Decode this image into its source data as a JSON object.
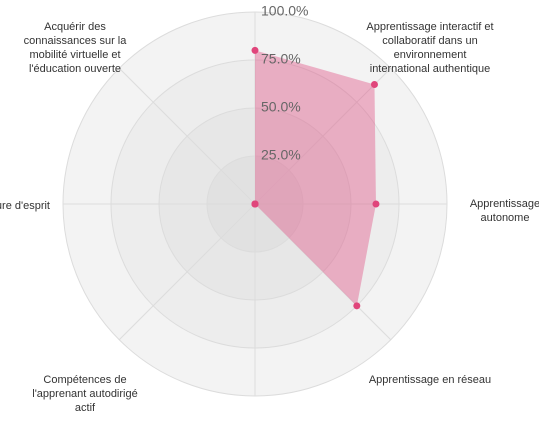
{
  "chart_data": {
    "type": "radar",
    "categories": [
      null,
      "Apprentissage interactif et collaboratif dans un environnement international authentique",
      "Apprentissage autonome",
      "Apprentissage en réseau",
      null,
      "Compétences de l'apprenant autodirigé actif",
      "ure d'esprit",
      "Acquérir des connaissances sur la mobilité virtuelle et l'éducation ouverte"
    ],
    "series": [
      {
        "color": "#e0457b",
        "values": [
          80,
          88,
          63,
          75,
          0,
          0,
          0,
          0
        ]
      }
    ],
    "ylim": [
      0,
      100
    ],
    "yticks": [
      {
        "value": 25,
        "label": "25.0%"
      },
      {
        "value": 50,
        "label": "50.0%"
      },
      {
        "value": 75,
        "label": "75.0%"
      },
      {
        "value": 100,
        "label": "100.0%"
      }
    ],
    "grid": true
  }
}
